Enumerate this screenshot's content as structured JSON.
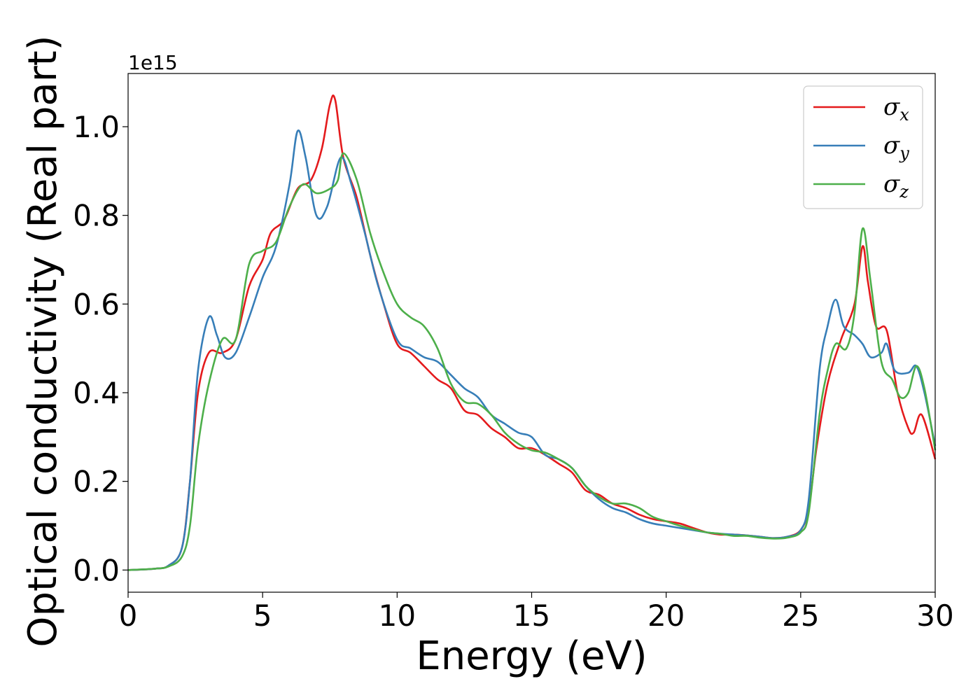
{
  "chart_data": {
    "type": "line",
    "xlabel": "Energy (eV)",
    "ylabel": "Optical conductivity (Real part)",
    "y_offset_label": "1e15",
    "xlim": [
      0,
      30
    ],
    "ylim": [
      -0.05,
      1.12
    ],
    "x_ticks": [
      0,
      5,
      10,
      15,
      20,
      25,
      30
    ],
    "x_tick_labels": [
      "0",
      "5",
      "10",
      "15",
      "20",
      "25",
      "30"
    ],
    "y_ticks": [
      0.0,
      0.2,
      0.4,
      0.6,
      0.8,
      1.0
    ],
    "y_tick_labels": [
      "0.0",
      "0.2",
      "0.4",
      "0.6",
      "0.8",
      "1.0"
    ],
    "grid": false,
    "legend_position": "top-right",
    "series": [
      {
        "name": "σx",
        "legend_symbol": "σ",
        "legend_subscript": "x",
        "color": "#e41a1c",
        "points": [
          [
            0,
            0
          ],
          [
            1,
            0.003
          ],
          [
            1.5,
            0.01
          ],
          [
            2,
            0.05
          ],
          [
            2.3,
            0.2
          ],
          [
            2.6,
            0.4
          ],
          [
            3,
            0.49
          ],
          [
            3.5,
            0.49
          ],
          [
            4,
            0.52
          ],
          [
            4.5,
            0.64
          ],
          [
            5,
            0.7
          ],
          [
            5.3,
            0.76
          ],
          [
            5.8,
            0.79
          ],
          [
            6.3,
            0.86
          ],
          [
            6.8,
            0.88
          ],
          [
            7.2,
            0.95
          ],
          [
            7.5,
            1.05
          ],
          [
            7.7,
            1.06
          ],
          [
            8,
            0.93
          ],
          [
            8.5,
            0.84
          ],
          [
            9,
            0.71
          ],
          [
            9.5,
            0.6
          ],
          [
            10,
            0.51
          ],
          [
            10.5,
            0.49
          ],
          [
            11,
            0.46
          ],
          [
            11.5,
            0.43
          ],
          [
            12,
            0.41
          ],
          [
            12.5,
            0.36
          ],
          [
            13,
            0.35
          ],
          [
            13.5,
            0.32
          ],
          [
            14,
            0.3
          ],
          [
            14.5,
            0.275
          ],
          [
            15,
            0.275
          ],
          [
            15.5,
            0.26
          ],
          [
            16,
            0.24
          ],
          [
            16.5,
            0.22
          ],
          [
            17,
            0.18
          ],
          [
            17.5,
            0.17
          ],
          [
            18,
            0.15
          ],
          [
            18.5,
            0.14
          ],
          [
            19,
            0.125
          ],
          [
            19.5,
            0.115
          ],
          [
            20,
            0.11
          ],
          [
            20.5,
            0.105
          ],
          [
            21,
            0.095
          ],
          [
            21.5,
            0.085
          ],
          [
            22,
            0.08
          ],
          [
            22.5,
            0.08
          ],
          [
            23,
            0.078
          ],
          [
            23.5,
            0.075
          ],
          [
            24,
            0.072
          ],
          [
            24.5,
            0.075
          ],
          [
            25,
            0.09
          ],
          [
            25.3,
            0.14
          ],
          [
            25.6,
            0.28
          ],
          [
            26,
            0.42
          ],
          [
            26.5,
            0.52
          ],
          [
            27,
            0.6
          ],
          [
            27.3,
            0.73
          ],
          [
            27.5,
            0.65
          ],
          [
            27.8,
            0.55
          ],
          [
            28.2,
            0.54
          ],
          [
            28.6,
            0.4
          ],
          [
            29,
            0.32
          ],
          [
            29.2,
            0.31
          ],
          [
            29.5,
            0.35
          ],
          [
            30,
            0.25
          ]
        ]
      },
      {
        "name": "σy",
        "legend_symbol": "σ",
        "legend_subscript": "y",
        "color": "#377eb8",
        "points": [
          [
            0,
            0
          ],
          [
            1,
            0.003
          ],
          [
            1.5,
            0.01
          ],
          [
            2,
            0.05
          ],
          [
            2.3,
            0.2
          ],
          [
            2.6,
            0.45
          ],
          [
            3,
            0.57
          ],
          [
            3.3,
            0.53
          ],
          [
            3.6,
            0.48
          ],
          [
            4,
            0.49
          ],
          [
            4.5,
            0.57
          ],
          [
            5,
            0.66
          ],
          [
            5.5,
            0.73
          ],
          [
            6,
            0.87
          ],
          [
            6.3,
            0.99
          ],
          [
            6.6,
            0.93
          ],
          [
            7,
            0.8
          ],
          [
            7.4,
            0.82
          ],
          [
            7.9,
            0.93
          ],
          [
            8.3,
            0.87
          ],
          [
            8.8,
            0.76
          ],
          [
            9.3,
            0.64
          ],
          [
            10,
            0.52
          ],
          [
            10.5,
            0.5
          ],
          [
            11,
            0.48
          ],
          [
            11.5,
            0.47
          ],
          [
            12,
            0.44
          ],
          [
            12.5,
            0.41
          ],
          [
            13,
            0.39
          ],
          [
            13.5,
            0.35
          ],
          [
            14,
            0.33
          ],
          [
            14.5,
            0.31
          ],
          [
            15,
            0.3
          ],
          [
            15.5,
            0.26
          ],
          [
            16,
            0.25
          ],
          [
            16.5,
            0.23
          ],
          [
            17,
            0.19
          ],
          [
            17.5,
            0.16
          ],
          [
            18,
            0.14
          ],
          [
            18.5,
            0.13
          ],
          [
            19,
            0.115
          ],
          [
            19.5,
            0.105
          ],
          [
            20,
            0.1
          ],
          [
            20.5,
            0.095
          ],
          [
            21,
            0.09
          ],
          [
            21.5,
            0.085
          ],
          [
            22,
            0.082
          ],
          [
            22.5,
            0.08
          ],
          [
            23,
            0.078
          ],
          [
            23.5,
            0.075
          ],
          [
            24,
            0.072
          ],
          [
            24.5,
            0.075
          ],
          [
            25,
            0.09
          ],
          [
            25.3,
            0.16
          ],
          [
            25.7,
            0.45
          ],
          [
            26,
            0.55
          ],
          [
            26.3,
            0.61
          ],
          [
            26.6,
            0.55
          ],
          [
            27,
            0.53
          ],
          [
            27.3,
            0.51
          ],
          [
            27.6,
            0.48
          ],
          [
            28,
            0.49
          ],
          [
            28.2,
            0.51
          ],
          [
            28.5,
            0.45
          ],
          [
            29,
            0.445
          ],
          [
            29.3,
            0.46
          ],
          [
            29.6,
            0.4
          ],
          [
            30,
            0.28
          ]
        ]
      },
      {
        "name": "σz",
        "legend_symbol": "σ",
        "legend_subscript": "z",
        "color": "#4daf4a",
        "points": [
          [
            0,
            0
          ],
          [
            1,
            0.003
          ],
          [
            1.5,
            0.008
          ],
          [
            2,
            0.03
          ],
          [
            2.3,
            0.1
          ],
          [
            2.6,
            0.28
          ],
          [
            3,
            0.42
          ],
          [
            3.5,
            0.52
          ],
          [
            4,
            0.52
          ],
          [
            4.5,
            0.69
          ],
          [
            5,
            0.72
          ],
          [
            5.5,
            0.74
          ],
          [
            6,
            0.82
          ],
          [
            6.5,
            0.87
          ],
          [
            7,
            0.85
          ],
          [
            7.5,
            0.86
          ],
          [
            7.8,
            0.88
          ],
          [
            8,
            0.94
          ],
          [
            8.5,
            0.88
          ],
          [
            9,
            0.76
          ],
          [
            9.5,
            0.67
          ],
          [
            10,
            0.6
          ],
          [
            10.5,
            0.57
          ],
          [
            11,
            0.55
          ],
          [
            11.5,
            0.5
          ],
          [
            12,
            0.42
          ],
          [
            12.5,
            0.38
          ],
          [
            13,
            0.375
          ],
          [
            13.5,
            0.35
          ],
          [
            14,
            0.31
          ],
          [
            14.5,
            0.285
          ],
          [
            15,
            0.27
          ],
          [
            15.5,
            0.265
          ],
          [
            16,
            0.25
          ],
          [
            16.5,
            0.23
          ],
          [
            17,
            0.19
          ],
          [
            17.5,
            0.165
          ],
          [
            18,
            0.15
          ],
          [
            18.5,
            0.15
          ],
          [
            19,
            0.14
          ],
          [
            19.5,
            0.12
          ],
          [
            20,
            0.11
          ],
          [
            20.5,
            0.1
          ],
          [
            21,
            0.092
          ],
          [
            21.5,
            0.085
          ],
          [
            22,
            0.082
          ],
          [
            22.5,
            0.077
          ],
          [
            23,
            0.077
          ],
          [
            23.5,
            0.073
          ],
          [
            24,
            0.071
          ],
          [
            24.5,
            0.073
          ],
          [
            25,
            0.085
          ],
          [
            25.3,
            0.13
          ],
          [
            25.7,
            0.35
          ],
          [
            26,
            0.45
          ],
          [
            26.3,
            0.51
          ],
          [
            26.7,
            0.5
          ],
          [
            27,
            0.58
          ],
          [
            27.3,
            0.77
          ],
          [
            27.6,
            0.65
          ],
          [
            28,
            0.47
          ],
          [
            28.4,
            0.43
          ],
          [
            28.7,
            0.39
          ],
          [
            29,
            0.4
          ],
          [
            29.3,
            0.46
          ],
          [
            29.6,
            0.41
          ],
          [
            30,
            0.27
          ]
        ]
      }
    ]
  }
}
